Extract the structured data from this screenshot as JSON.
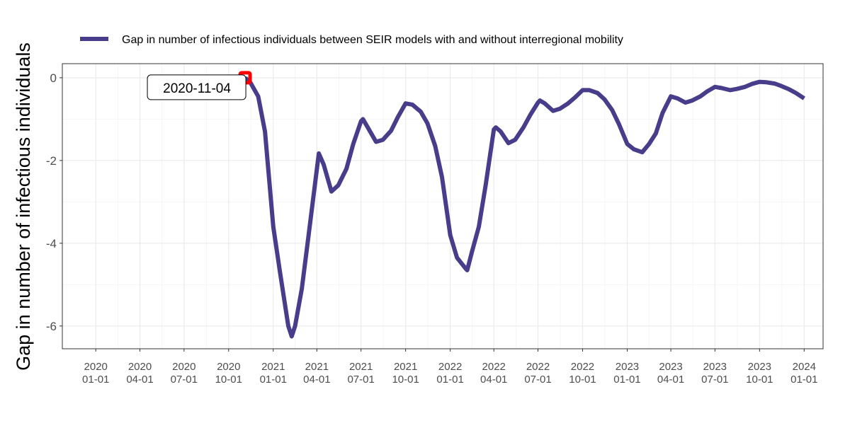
{
  "chart_data": {
    "type": "line",
    "y_label": "Gap in number of infectious individuals",
    "annotation": "2020-11-04",
    "highlight_color": "#ff0000",
    "grid": true,
    "legend": "top",
    "xlim": [
      "2019-10-24",
      "2024-02-09"
    ],
    "ylim": [
      -6.55,
      0.34
    ],
    "yticks": [
      0,
      -2,
      -4,
      -6
    ],
    "xticks": [
      {
        "value": "2020-01-01",
        "label": "2020\n01-01"
      },
      {
        "value": "2020-04-01",
        "label": "2020\n04-01"
      },
      {
        "value": "2020-07-01",
        "label": "2020\n07-01"
      },
      {
        "value": "2020-10-01",
        "label": "2020\n10-01"
      },
      {
        "value": "2021-01-01",
        "label": "2021\n01-01"
      },
      {
        "value": "2021-04-01",
        "label": "2021\n04-01"
      },
      {
        "value": "2021-07-01",
        "label": "2021\n07-01"
      },
      {
        "value": "2021-10-01",
        "label": "2021\n10-01"
      },
      {
        "value": "2022-01-01",
        "label": "2022\n01-01"
      },
      {
        "value": "2022-04-01",
        "label": "2022\n04-01"
      },
      {
        "value": "2022-07-01",
        "label": "2022\n07-01"
      },
      {
        "value": "2022-10-01",
        "label": "2022\n10-01"
      },
      {
        "value": "2023-01-01",
        "label": "2023\n01-01"
      },
      {
        "value": "2023-04-01",
        "label": "2023\n04-01"
      },
      {
        "value": "2023-07-01",
        "label": "2023\n07-01"
      },
      {
        "value": "2023-10-01",
        "label": "2023\n10-01"
      },
      {
        "value": "2024-01-01",
        "label": "2024\n01-01"
      }
    ],
    "x": [
      "2020-11-04",
      "2020-11-15",
      "2020-12-01",
      "2020-12-15",
      "2021-01-01",
      "2021-01-15",
      "2021-02-01",
      "2021-02-08",
      "2021-02-15",
      "2021-03-01",
      "2021-03-15",
      "2021-04-01",
      "2021-04-05",
      "2021-04-15",
      "2021-05-01",
      "2021-05-15",
      "2021-06-01",
      "2021-06-15",
      "2021-07-01",
      "2021-07-05",
      "2021-07-15",
      "2021-08-01",
      "2021-08-15",
      "2021-09-01",
      "2021-09-15",
      "2021-10-01",
      "2021-10-15",
      "2021-11-01",
      "2021-11-15",
      "2021-12-01",
      "2021-12-15",
      "2022-01-01",
      "2022-01-15",
      "2022-02-01",
      "2022-02-05",
      "2022-02-15",
      "2022-03-01",
      "2022-03-15",
      "2022-04-01",
      "2022-04-05",
      "2022-04-15",
      "2022-05-01",
      "2022-05-15",
      "2022-06-01",
      "2022-06-15",
      "2022-07-01",
      "2022-07-05",
      "2022-07-15",
      "2022-08-01",
      "2022-08-15",
      "2022-09-01",
      "2022-09-15",
      "2022-10-01",
      "2022-10-15",
      "2022-11-01",
      "2022-11-15",
      "2022-12-01",
      "2022-12-15",
      "2023-01-01",
      "2023-01-15",
      "2023-02-01",
      "2023-02-15",
      "2023-03-01",
      "2023-03-15",
      "2023-04-01",
      "2023-04-15",
      "2023-05-01",
      "2023-05-15",
      "2023-06-01",
      "2023-06-15",
      "2023-07-01",
      "2023-07-15",
      "2023-08-01",
      "2023-08-15",
      "2023-09-01",
      "2023-09-15",
      "2023-10-01",
      "2023-10-15",
      "2023-11-01",
      "2023-11-15",
      "2023-12-01",
      "2023-12-15",
      "2024-01-01"
    ],
    "series": [
      {
        "name": "Gap in number of infectious individuals between SEIR models with and without interregional mobility",
        "color": "#483d8b",
        "values": [
          0,
          -0.12,
          -0.45,
          -1.3,
          -3.6,
          -4.7,
          -6.0,
          -6.25,
          -6.0,
          -5.1,
          -3.8,
          -2.2,
          -1.83,
          -2.1,
          -2.75,
          -2.6,
          -2.2,
          -1.6,
          -1.05,
          -1.0,
          -1.2,
          -1.55,
          -1.5,
          -1.28,
          -0.95,
          -0.62,
          -0.65,
          -0.82,
          -1.1,
          -1.65,
          -2.4,
          -3.8,
          -4.35,
          -4.6,
          -4.65,
          -4.2,
          -3.6,
          -2.6,
          -1.25,
          -1.2,
          -1.3,
          -1.58,
          -1.5,
          -1.2,
          -0.9,
          -0.6,
          -0.55,
          -0.62,
          -0.8,
          -0.75,
          -0.62,
          -0.48,
          -0.3,
          -0.3,
          -0.37,
          -0.52,
          -0.78,
          -1.12,
          -1.6,
          -1.73,
          -1.8,
          -1.6,
          -1.35,
          -0.85,
          -0.45,
          -0.5,
          -0.6,
          -0.55,
          -0.45,
          -0.33,
          -0.22,
          -0.25,
          -0.3,
          -0.27,
          -0.22,
          -0.15,
          -0.1,
          -0.11,
          -0.14,
          -0.2,
          -0.28,
          -0.37,
          -0.5
        ]
      }
    ]
  }
}
